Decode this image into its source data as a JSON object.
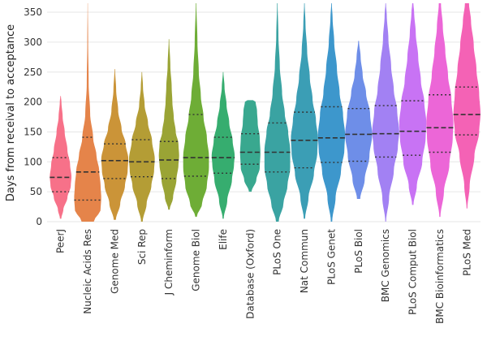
{
  "chart_data": {
    "type": "violin",
    "ylabel": "Days from receival to acceptance",
    "xlabel": "",
    "ylim": [
      0,
      365
    ],
    "yticks": [
      0,
      50,
      100,
      150,
      200,
      250,
      300,
      350
    ],
    "grid": true,
    "categories": [
      "PeerJ",
      "Nucleic Acids Res",
      "Genome Med",
      "Sci Rep",
      "J Cheminform",
      "Genome Biol",
      "Elife",
      "Database (Oxford)",
      "PLoS One",
      "Nat Commun",
      "PLoS Genet",
      "PLoS Biol",
      "BMC Genomics",
      "PLoS Comput Biol",
      "BMC Bioinformatics",
      "PLoS Med"
    ],
    "series": [
      {
        "category": "PeerJ",
        "color": "#f77189",
        "min": 5,
        "max": 210,
        "q1": 50,
        "median": 74,
        "q3": 107,
        "profile": [
          [
            5,
            0.05
          ],
          [
            20,
            0.2
          ],
          [
            40,
            0.5
          ],
          [
            60,
            0.75
          ],
          [
            75,
            0.8
          ],
          [
            95,
            0.7
          ],
          [
            120,
            0.5
          ],
          [
            150,
            0.3
          ],
          [
            175,
            0.15
          ],
          [
            200,
            0.06
          ],
          [
            210,
            0.02
          ]
        ]
      },
      {
        "category": "Nucleic Acids Res",
        "color": "#e5844a",
        "min": 0,
        "max": 365,
        "q1": 36,
        "median": 83,
        "q3": 141,
        "profile": [
          [
            0,
            0.45
          ],
          [
            20,
            0.95
          ],
          [
            40,
            1.0
          ],
          [
            60,
            0.95
          ],
          [
            85,
            0.85
          ],
          [
            110,
            0.65
          ],
          [
            140,
            0.4
          ],
          [
            180,
            0.18
          ],
          [
            230,
            0.07
          ],
          [
            300,
            0.03
          ],
          [
            365,
            0.01
          ]
        ]
      },
      {
        "category": "Genome Med",
        "color": "#cb9438",
        "min": 3,
        "max": 255,
        "q1": 72,
        "median": 102,
        "q3": 130,
        "profile": [
          [
            3,
            0.08
          ],
          [
            30,
            0.4
          ],
          [
            60,
            0.75
          ],
          [
            85,
            0.95
          ],
          [
            105,
            1.0
          ],
          [
            130,
            0.8
          ],
          [
            155,
            0.5
          ],
          [
            185,
            0.25
          ],
          [
            220,
            0.1
          ],
          [
            255,
            0.02
          ]
        ]
      },
      {
        "category": "Sci Rep",
        "color": "#b49d35",
        "min": 0,
        "max": 250,
        "q1": 75,
        "median": 100,
        "q3": 137,
        "profile": [
          [
            0,
            0.06
          ],
          [
            30,
            0.35
          ],
          [
            60,
            0.7
          ],
          [
            85,
            0.9
          ],
          [
            105,
            0.95
          ],
          [
            135,
            0.75
          ],
          [
            165,
            0.45
          ],
          [
            195,
            0.2
          ],
          [
            225,
            0.08
          ],
          [
            250,
            0.02
          ]
        ]
      },
      {
        "category": "J Cheminform",
        "color": "#9aa435",
        "min": 20,
        "max": 305,
        "q1": 72,
        "median": 103,
        "q3": 134,
        "profile": [
          [
            20,
            0.05
          ],
          [
            40,
            0.3
          ],
          [
            70,
            0.55
          ],
          [
            95,
            0.7
          ],
          [
            110,
            0.75
          ],
          [
            130,
            0.7
          ],
          [
            150,
            0.5
          ],
          [
            175,
            0.35
          ],
          [
            200,
            0.25
          ],
          [
            225,
            0.2
          ],
          [
            260,
            0.1
          ],
          [
            305,
            0.02
          ]
        ]
      },
      {
        "category": "Genome Biol",
        "color": "#6ead36",
        "min": 8,
        "max": 365,
        "q1": 76,
        "median": 107,
        "q3": 179,
        "profile": [
          [
            8,
            0.05
          ],
          [
            30,
            0.45
          ],
          [
            60,
            0.8
          ],
          [
            90,
            0.95
          ],
          [
            110,
            0.95
          ],
          [
            140,
            0.8
          ],
          [
            175,
            0.55
          ],
          [
            210,
            0.35
          ],
          [
            250,
            0.2
          ],
          [
            300,
            0.1
          ],
          [
            365,
            0.02
          ]
        ]
      },
      {
        "category": "Elife",
        "color": "#36ad6f",
        "min": 5,
        "max": 250,
        "q1": 81,
        "median": 107,
        "q3": 141,
        "profile": [
          [
            5,
            0.04
          ],
          [
            35,
            0.3
          ],
          [
            70,
            0.65
          ],
          [
            95,
            0.8
          ],
          [
            110,
            0.85
          ],
          [
            135,
            0.7
          ],
          [
            165,
            0.45
          ],
          [
            195,
            0.25
          ],
          [
            225,
            0.1
          ],
          [
            250,
            0.02
          ]
        ]
      },
      {
        "category": "Database (Oxford)",
        "color": "#39a88f",
        "min": 50,
        "max": 203,
        "q1": 96,
        "median": 116,
        "q3": 147,
        "profile": [
          [
            50,
            0.1
          ],
          [
            70,
            0.45
          ],
          [
            90,
            0.7
          ],
          [
            115,
            0.75
          ],
          [
            140,
            0.7
          ],
          [
            165,
            0.55
          ],
          [
            185,
            0.5
          ],
          [
            200,
            0.4
          ],
          [
            203,
            0.2
          ]
        ]
      },
      {
        "category": "PLoS One",
        "color": "#3aa3a2",
        "min": 0,
        "max": 365,
        "q1": 83,
        "median": 116,
        "q3": 165,
        "profile": [
          [
            0,
            0.1
          ],
          [
            30,
            0.45
          ],
          [
            60,
            0.75
          ],
          [
            90,
            0.95
          ],
          [
            120,
            0.95
          ],
          [
            150,
            0.8
          ],
          [
            180,
            0.55
          ],
          [
            215,
            0.35
          ],
          [
            260,
            0.18
          ],
          [
            310,
            0.08
          ],
          [
            365,
            0.02
          ]
        ]
      },
      {
        "category": "Nat Commun",
        "color": "#3b9eb5",
        "min": 5,
        "max": 365,
        "q1": 90,
        "median": 136,
        "q3": 183,
        "profile": [
          [
            5,
            0.05
          ],
          [
            40,
            0.3
          ],
          [
            80,
            0.7
          ],
          [
            115,
            0.95
          ],
          [
            140,
            1.0
          ],
          [
            170,
            0.85
          ],
          [
            205,
            0.6
          ],
          [
            240,
            0.4
          ],
          [
            285,
            0.2
          ],
          [
            330,
            0.08
          ],
          [
            365,
            0.02
          ]
        ]
      },
      {
        "category": "PLoS Genet",
        "color": "#3d97cc",
        "min": 0,
        "max": 365,
        "q1": 99,
        "median": 140,
        "q3": 192,
        "profile": [
          [
            0,
            0.05
          ],
          [
            40,
            0.3
          ],
          [
            85,
            0.7
          ],
          [
            120,
            0.95
          ],
          [
            145,
            1.0
          ],
          [
            180,
            0.85
          ],
          [
            215,
            0.6
          ],
          [
            255,
            0.4
          ],
          [
            300,
            0.2
          ],
          [
            340,
            0.08
          ],
          [
            365,
            0.02
          ]
        ]
      },
      {
        "category": "PLoS Biol",
        "color": "#6e8ee8",
        "min": 38,
        "max": 302,
        "q1": 101,
        "median": 146,
        "q3": 189,
        "profile": [
          [
            38,
            0.12
          ],
          [
            70,
            0.45
          ],
          [
            110,
            0.8
          ],
          [
            145,
            1.0
          ],
          [
            180,
            0.85
          ],
          [
            215,
            0.55
          ],
          [
            245,
            0.3
          ],
          [
            275,
            0.15
          ],
          [
            302,
            0.03
          ]
        ]
      },
      {
        "category": "BMC Genomics",
        "color": "#a281f3",
        "min": 0,
        "max": 365,
        "q1": 108,
        "median": 147,
        "q3": 194,
        "profile": [
          [
            0,
            0.03
          ],
          [
            40,
            0.25
          ],
          [
            85,
            0.6
          ],
          [
            125,
            0.9
          ],
          [
            150,
            1.0
          ],
          [
            185,
            0.85
          ],
          [
            220,
            0.6
          ],
          [
            260,
            0.4
          ],
          [
            305,
            0.2
          ],
          [
            345,
            0.08
          ],
          [
            365,
            0.02
          ]
        ]
      },
      {
        "category": "PLoS Comput Biol",
        "color": "#c873f4",
        "min": 28,
        "max": 365,
        "q1": 111,
        "median": 151,
        "q3": 202,
        "profile": [
          [
            28,
            0.05
          ],
          [
            60,
            0.3
          ],
          [
            100,
            0.7
          ],
          [
            140,
            0.95
          ],
          [
            165,
            1.0
          ],
          [
            200,
            0.85
          ],
          [
            235,
            0.6
          ],
          [
            275,
            0.4
          ],
          [
            315,
            0.22
          ],
          [
            350,
            0.1
          ],
          [
            365,
            0.04
          ]
        ]
      },
      {
        "category": "BMC Bioinformatics",
        "color": "#ec66d7",
        "min": 8,
        "max": 365,
        "q1": 116,
        "median": 157,
        "q3": 212,
        "profile": [
          [
            8,
            0.04
          ],
          [
            50,
            0.3
          ],
          [
            95,
            0.7
          ],
          [
            140,
            0.95
          ],
          [
            165,
            1.0
          ],
          [
            205,
            0.85
          ],
          [
            245,
            0.6
          ],
          [
            285,
            0.4
          ],
          [
            325,
            0.22
          ],
          [
            365,
            0.08
          ]
        ]
      },
      {
        "category": "PLoS Med",
        "color": "#f462b5",
        "min": 22,
        "max": 365,
        "q1": 145,
        "median": 179,
        "q3": 225,
        "profile": [
          [
            22,
            0.03
          ],
          [
            60,
            0.2
          ],
          [
            110,
            0.55
          ],
          [
            150,
            0.9
          ],
          [
            180,
            1.0
          ],
          [
            215,
            0.9
          ],
          [
            255,
            0.7
          ],
          [
            295,
            0.5
          ],
          [
            335,
            0.3
          ],
          [
            365,
            0.15
          ]
        ]
      }
    ]
  }
}
